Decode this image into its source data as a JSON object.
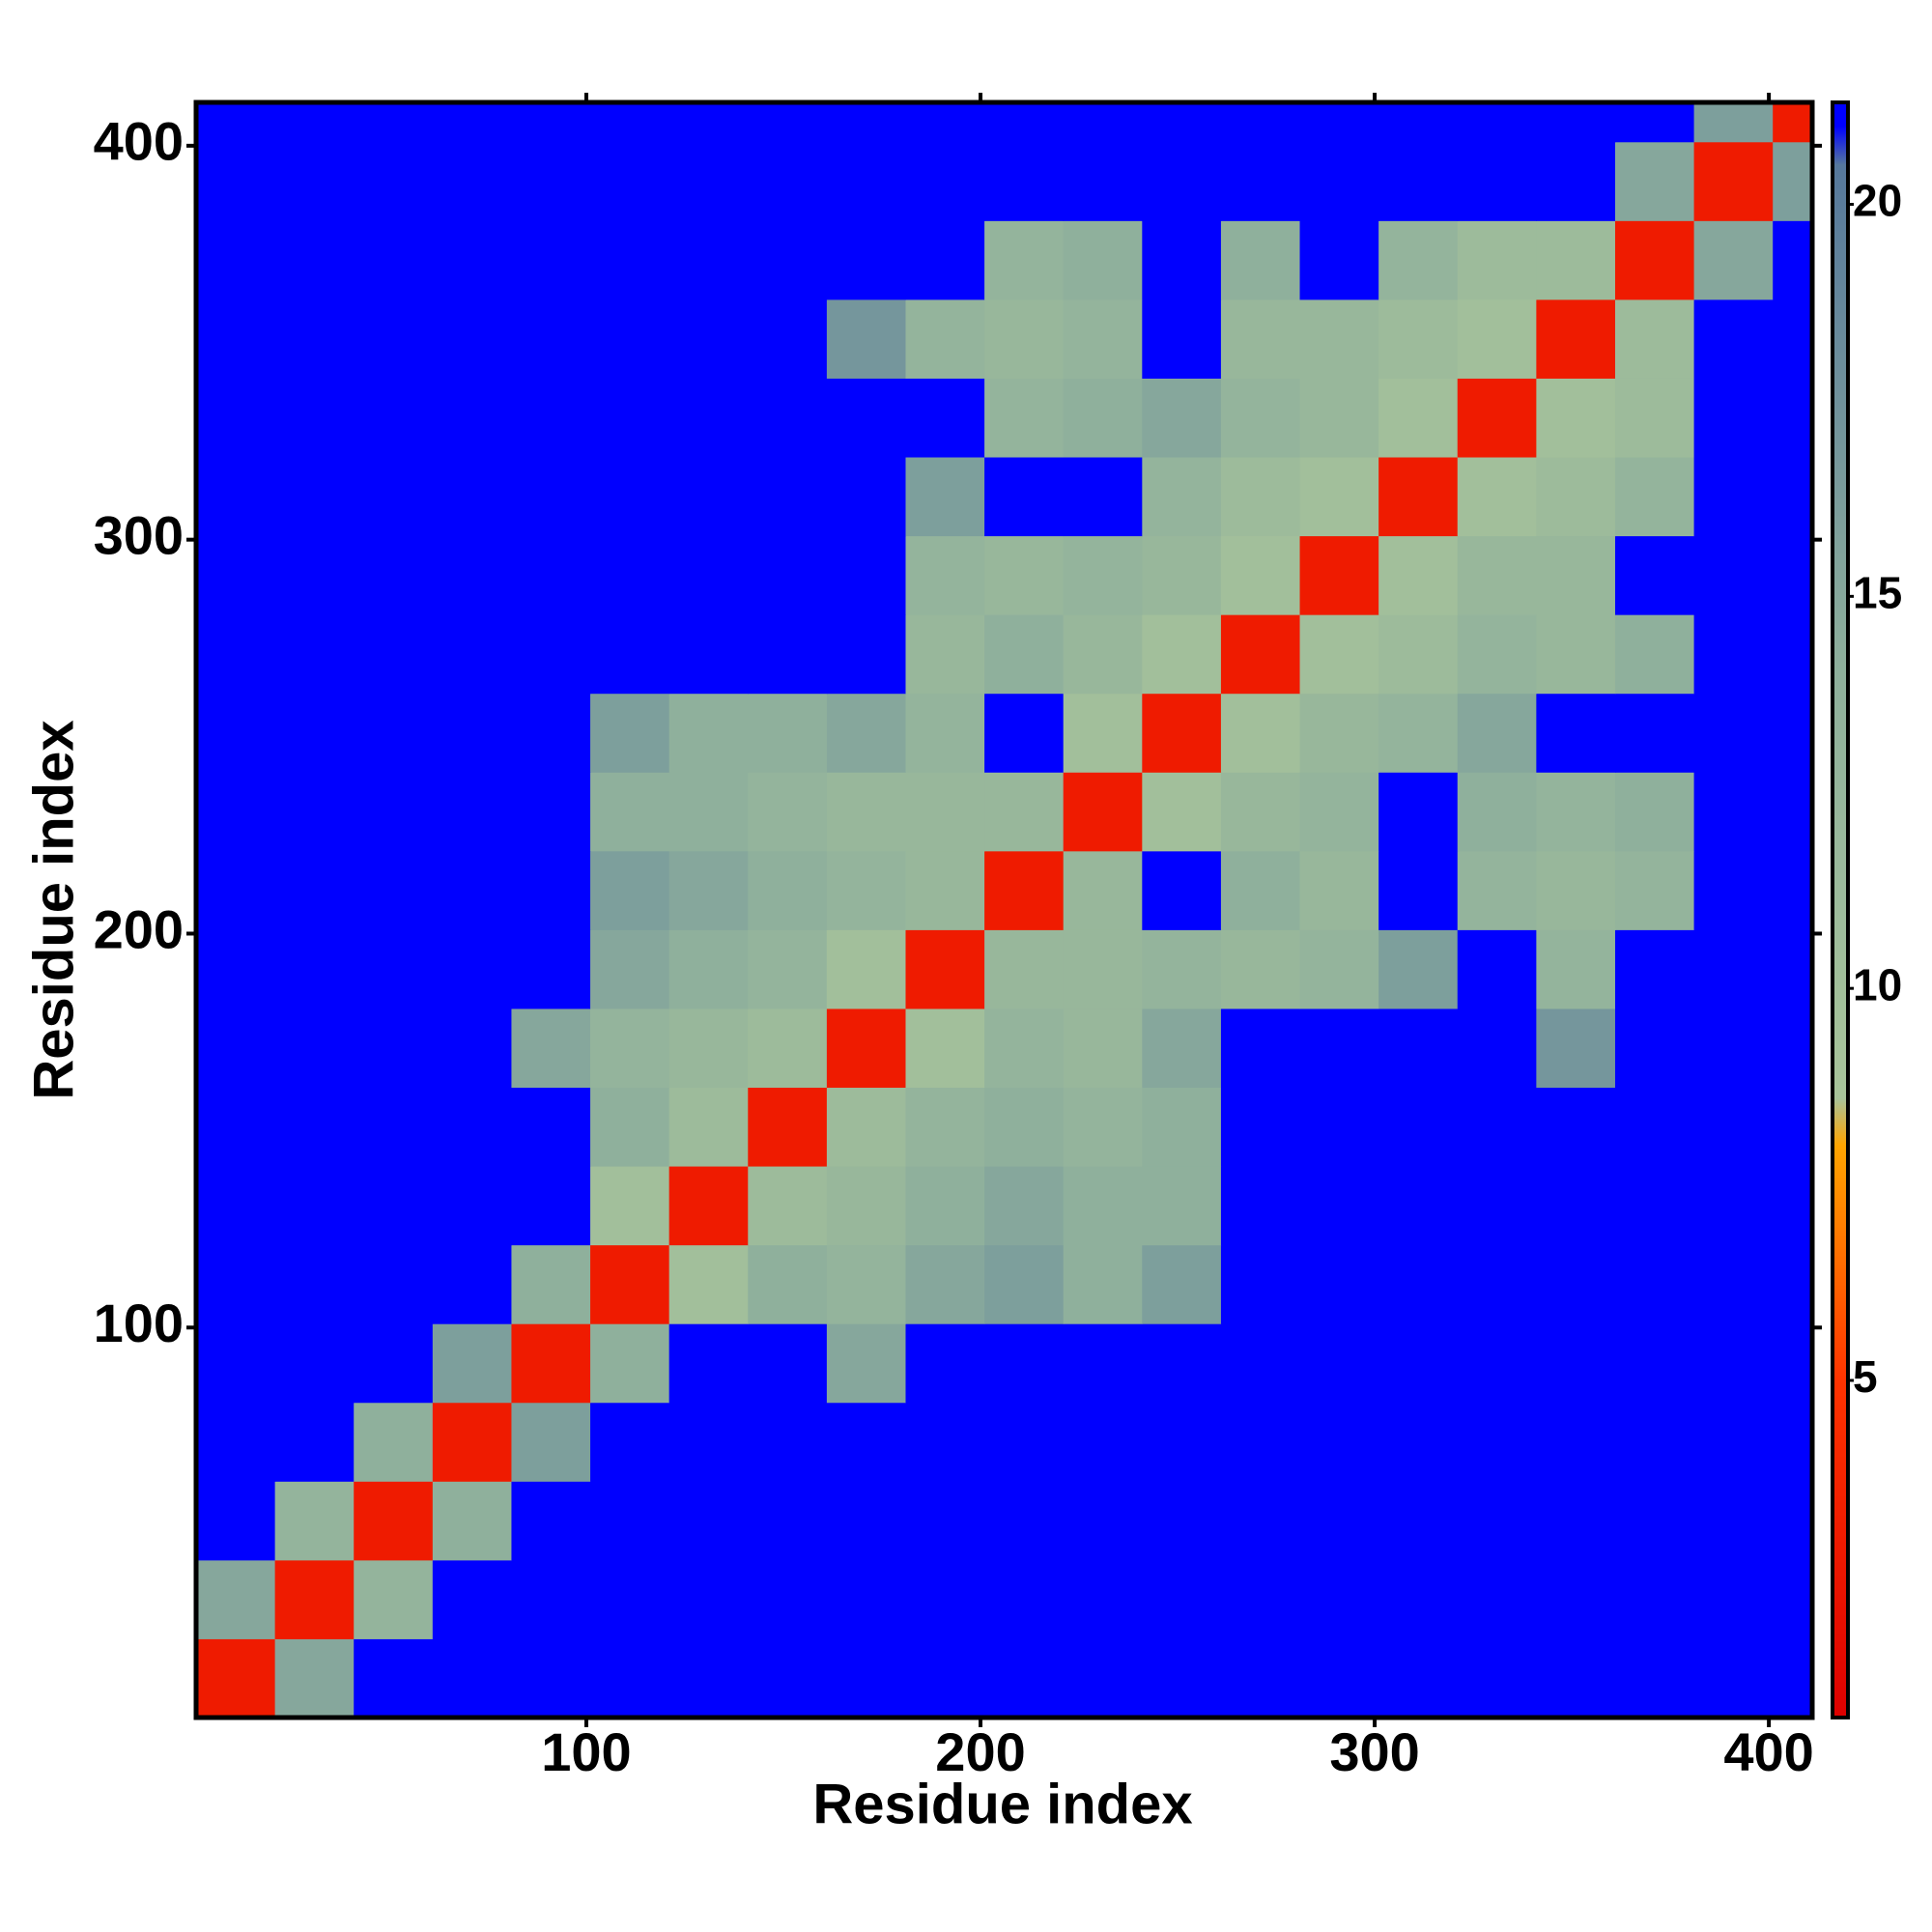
{
  "chart_data": {
    "type": "heatmap",
    "xlabel": "Residue index",
    "ylabel": "Residue index",
    "bins": [
      1,
      21,
      41,
      61,
      81,
      101,
      121,
      141,
      161,
      181,
      201,
      221,
      241,
      261,
      281,
      301,
      321,
      341,
      361,
      381,
      401,
      411
    ],
    "xlim": [
      1,
      411
    ],
    "ylim": [
      1,
      411
    ],
    "xticks": [
      100,
      200,
      300,
      400
    ],
    "yticks": [
      100,
      200,
      300,
      400
    ],
    "clim": [
      0.7,
      21.3
    ],
    "cticks": [
      5,
      10,
      15,
      20
    ],
    "colorscale": [
      [
        0.7,
        "#dd0000"
      ],
      [
        5,
        "#ff3300"
      ],
      [
        8,
        "#ffa500"
      ],
      [
        8.6,
        "#a8c49a"
      ],
      [
        14,
        "#8fb09c"
      ],
      [
        20.5,
        "#56789c"
      ],
      [
        21,
        "#0000ff"
      ]
    ],
    "values": [
      [
        3,
        15,
        21,
        21,
        21,
        21,
        21,
        21,
        21,
        21,
        21,
        21,
        21,
        21,
        21,
        21,
        21,
        21,
        21,
        21,
        21
      ],
      [
        15,
        3,
        13,
        21,
        21,
        21,
        21,
        21,
        21,
        21,
        21,
        21,
        21,
        21,
        21,
        21,
        21,
        21,
        21,
        21,
        21
      ],
      [
        21,
        13,
        3,
        14,
        21,
        21,
        21,
        21,
        21,
        21,
        21,
        21,
        21,
        21,
        21,
        21,
        21,
        21,
        21,
        21,
        21
      ],
      [
        21,
        21,
        14,
        3,
        16,
        21,
        21,
        21,
        21,
        21,
        21,
        21,
        21,
        21,
        21,
        21,
        21,
        21,
        21,
        21,
        21
      ],
      [
        21,
        21,
        21,
        16,
        3,
        14,
        21,
        21,
        15,
        21,
        21,
        21,
        21,
        21,
        21,
        21,
        21,
        21,
        21,
        21,
        21
      ],
      [
        21,
        21,
        21,
        21,
        14,
        3,
        10,
        14,
        13,
        15,
        16,
        14,
        16,
        21,
        21,
        21,
        21,
        21,
        21,
        21,
        21
      ],
      [
        21,
        21,
        21,
        21,
        21,
        10,
        3,
        11,
        12,
        14,
        15,
        14,
        14,
        21,
        21,
        21,
        21,
        21,
        21,
        21,
        21
      ],
      [
        21,
        21,
        21,
        21,
        21,
        14,
        11,
        3,
        11,
        13,
        14,
        13,
        14,
        21,
        21,
        21,
        21,
        21,
        21,
        21,
        21
      ],
      [
        21,
        21,
        21,
        21,
        15,
        13,
        12,
        11,
        3,
        10,
        13,
        12,
        15,
        21,
        21,
        21,
        21,
        17,
        21,
        21,
        21
      ],
      [
        21,
        21,
        21,
        21,
        21,
        15,
        14,
        13,
        10,
        3,
        12,
        12,
        13,
        12,
        13,
        16,
        21,
        13,
        21,
        21,
        21
      ],
      [
        21,
        21,
        21,
        21,
        21,
        16,
        15,
        14,
        13,
        12,
        3,
        12,
        21,
        14,
        12,
        21,
        13,
        12,
        13,
        21,
        21
      ],
      [
        21,
        21,
        21,
        21,
        21,
        14,
        14,
        13,
        12,
        12,
        12,
        3,
        10,
        12,
        13,
        21,
        14,
        13,
        14,
        21,
        21
      ],
      [
        21,
        21,
        21,
        21,
        21,
        16,
        14,
        14,
        15,
        13,
        21,
        10,
        3,
        10,
        12,
        13,
        15,
        21,
        21,
        21,
        21
      ],
      [
        21,
        21,
        21,
        21,
        21,
        21,
        21,
        21,
        21,
        12,
        14,
        12,
        10,
        3,
        10,
        11,
        13,
        12,
        14,
        21,
        21
      ],
      [
        21,
        21,
        21,
        21,
        21,
        21,
        21,
        21,
        21,
        13,
        12,
        13,
        12,
        10,
        3,
        10,
        12,
        12,
        21,
        21,
        21
      ],
      [
        21,
        21,
        21,
        21,
        21,
        21,
        21,
        21,
        21,
        16,
        21,
        21,
        13,
        11,
        10,
        3,
        10,
        11,
        13,
        21,
        21
      ],
      [
        21,
        21,
        21,
        21,
        21,
        21,
        21,
        21,
        21,
        21,
        13,
        14,
        15,
        13,
        12,
        10,
        3,
        10,
        11,
        21,
        21
      ],
      [
        21,
        21,
        21,
        21,
        21,
        21,
        21,
        21,
        17,
        13,
        12,
        13,
        21,
        12,
        12,
        11,
        10,
        3,
        11,
        21,
        21
      ],
      [
        21,
        21,
        21,
        21,
        21,
        21,
        21,
        21,
        21,
        21,
        13,
        14,
        21,
        14,
        21,
        13,
        11,
        11,
        3,
        15,
        21
      ],
      [
        21,
        21,
        21,
        21,
        21,
        21,
        21,
        21,
        21,
        21,
        21,
        21,
        21,
        21,
        21,
        21,
        21,
        21,
        15,
        3,
        16
      ],
      [
        21,
        21,
        21,
        21,
        21,
        21,
        21,
        21,
        21,
        21,
        21,
        21,
        21,
        21,
        21,
        21,
        21,
        21,
        21,
        16,
        3
      ]
    ]
  }
}
